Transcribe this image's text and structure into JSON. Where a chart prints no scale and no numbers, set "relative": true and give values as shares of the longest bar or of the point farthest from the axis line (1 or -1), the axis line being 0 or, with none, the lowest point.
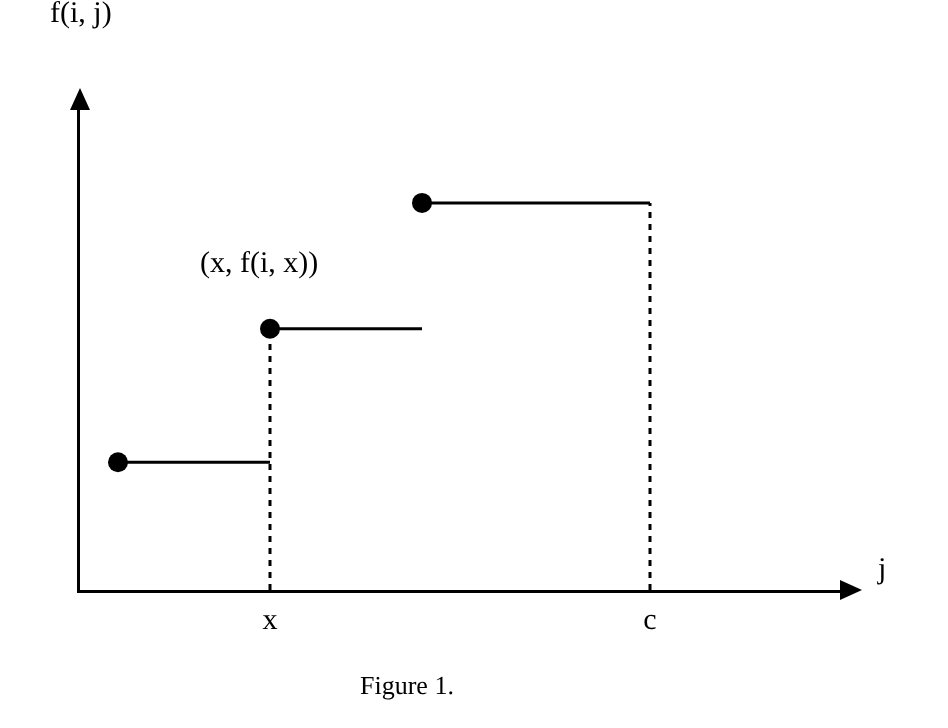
{
  "chart_data": {
    "type": "line",
    "relative": true,
    "xlabel": "j",
    "categories": [
      null,
      null,
      null,
      null,
      null,
      "x",
      null,
      null,
      null,
      null,
      null,
      null,
      null,
      null,
      null,
      "c",
      null,
      null,
      null,
      null,
      null
    ],
    "series": [
      {
        "color": "#000000",
        "values": [
          null,
          0.33,
          0.33,
          0.33,
          0.33,
          0.33,
          null,
          null,
          null,
          null,
          null,
          null,
          null,
          null,
          null,
          null,
          null,
          null,
          null,
          null,
          null
        ],
        "marker": "none",
        "line_style": "solid"
      },
      {
        "color": "#000000",
        "values": [
          null,
          null,
          null,
          null,
          null,
          0.675,
          0.675,
          0.675,
          0.675,
          0.675,
          null,
          null,
          null,
          null,
          null,
          null,
          null,
          null,
          null,
          null,
          null
        ],
        "marker": "none",
        "line_style": "solid"
      },
      {
        "color": "#000000",
        "values": [
          null,
          null,
          null,
          null,
          null,
          null,
          null,
          null,
          null,
          1,
          1,
          1,
          1,
          1,
          1,
          1,
          null,
          null,
          null,
          null,
          null
        ],
        "marker": "none",
        "line_style": "solid"
      },
      {
        "color": "#000000",
        "x": [
          "x",
          "x"
        ],
        "values": [
          0,
          0.675
        ],
        "marker": "none",
        "line_style": "dotted"
      },
      {
        "color": "#000000",
        "x": [
          "c",
          "c"
        ],
        "values": [
          0,
          1
        ],
        "marker": "none",
        "line_style": "dotted"
      },
      {
        "type": "scatter",
        "color": "#000000",
        "values": [
          null,
          0.33,
          null,
          null,
          null,
          0.675,
          null,
          null,
          null,
          1,
          null,
          null,
          null,
          null,
          null,
          null,
          null,
          null,
          null,
          null,
          null
        ],
        "marker": "circle"
      }
    ],
    "annotations": [
      "f(i, j)",
      {
        "text": "(x, f(i, x))",
        "x": "x",
        "y": 0.675
      },
      "Figure 1."
    ]
  }
}
